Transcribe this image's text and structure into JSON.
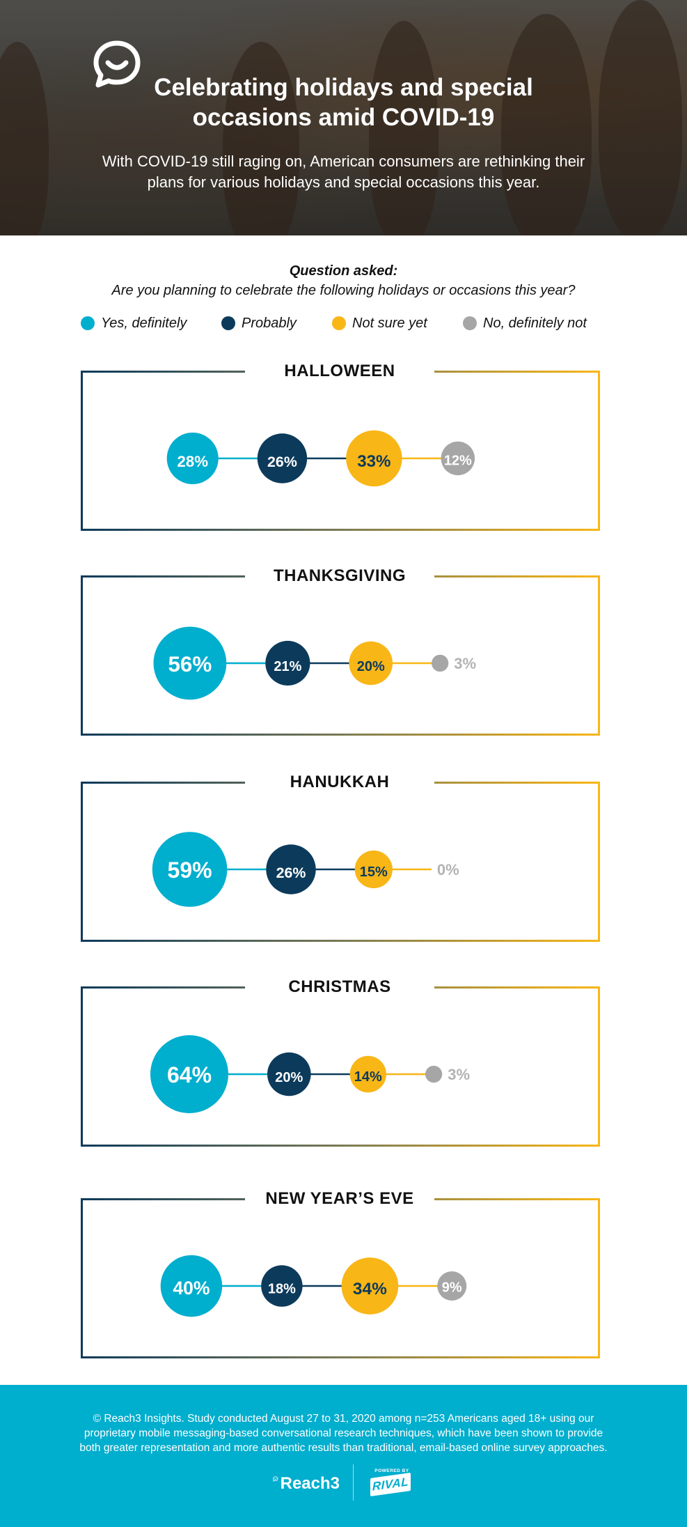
{
  "header": {
    "title_line1": "Celebrating holidays and special",
    "title_line2": "occasions amid COVID-19",
    "subtitle_line1": "With COVID-19 still raging on, American consumers are rethinking their",
    "subtitle_line2": "plans for various holidays and special occasions this year."
  },
  "question": {
    "label": "Question asked:",
    "text": "Are you planning to celebrate the following holidays or occasions this year?"
  },
  "legend": [
    {
      "label": "Yes, definitely",
      "color": "#00aece"
    },
    {
      "label": "Probably",
      "color": "#0c3a5b"
    },
    {
      "label": "Not sure yet",
      "color": "#f8b617"
    },
    {
      "label": "No, definitely not",
      "color": "#a6a6a6"
    }
  ],
  "chart_data": {
    "type": "bubble",
    "unit": "%",
    "categories": [
      "Yes, definitely",
      "Probably",
      "Not sure yet",
      "No, definitely not"
    ],
    "series": [
      {
        "name": "HALLOWEEN",
        "values": [
          28,
          26,
          33,
          12
        ],
        "labels": [
          "28%",
          "26%",
          "33%",
          "12%"
        ]
      },
      {
        "name": "THANKSGIVING",
        "values": [
          56,
          21,
          20,
          3
        ],
        "labels": [
          "56%",
          "21%",
          "20%",
          "3%"
        ]
      },
      {
        "name": "HANUKKAH",
        "values": [
          59,
          26,
          15,
          0
        ],
        "labels": [
          "59%",
          "26%",
          "15%",
          "0%"
        ]
      },
      {
        "name": "CHRISTMAS",
        "values": [
          64,
          20,
          14,
          3
        ],
        "labels": [
          "64%",
          "20%",
          "14%",
          "3%"
        ]
      },
      {
        "name": "NEW YEAR’S EVE",
        "values": [
          40,
          18,
          34,
          9
        ],
        "labels": [
          "40%",
          "18%",
          "34%",
          "9%"
        ]
      }
    ],
    "colors": [
      "#00aece",
      "#0c3a5b",
      "#f8b617",
      "#a6a6a6"
    ]
  },
  "footer": {
    "note_line1": "© Reach3 Insights. Study conducted August 27 to 31, 2020 among n=253 Americans aged 18+ using our",
    "note_line2": "proprietary mobile messaging-based conversational research techniques, which have been shown to provide",
    "note_line3": "both greater representation and more authentic results than traditional, email-based online survey approaches.",
    "brand_reach3": "Reach3",
    "brand_powered": "POWERED BY",
    "brand_rival": "RIVAL"
  }
}
